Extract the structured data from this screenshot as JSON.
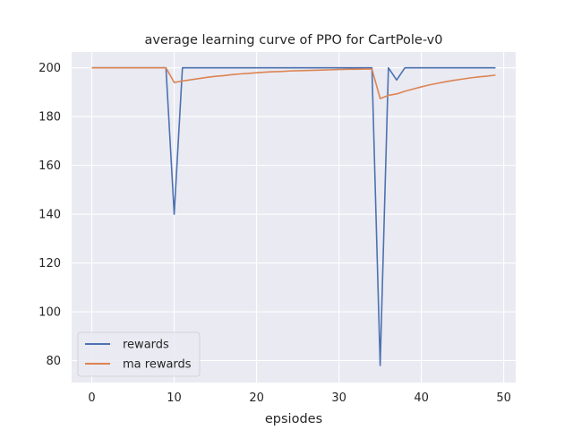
{
  "chart_data": {
    "type": "line",
    "title": "average learning curve of PPO for CartPole-v0",
    "xlabel": "epsiodes",
    "ylabel": "",
    "xlim": [
      -2.45,
      51.45
    ],
    "ylim": [
      71,
      206.5
    ],
    "xticks": [
      "0",
      "10",
      "20",
      "30",
      "40",
      "50"
    ],
    "yticks": [
      "80",
      "100",
      "120",
      "140",
      "160",
      "180",
      "200"
    ],
    "grid": true,
    "legend_position": "bottom-left",
    "background_color": "#eaeaf2",
    "grid_color": "#ffffff",
    "x": [
      0,
      1,
      2,
      3,
      4,
      5,
      6,
      7,
      8,
      9,
      10,
      11,
      12,
      13,
      14,
      15,
      16,
      17,
      18,
      19,
      20,
      21,
      22,
      23,
      24,
      25,
      26,
      27,
      28,
      29,
      30,
      31,
      32,
      33,
      34,
      35,
      36,
      37,
      38,
      39,
      40,
      41,
      42,
      43,
      44,
      45,
      46,
      47,
      48,
      49
    ],
    "series": [
      {
        "name": "rewards",
        "color": "#4c72b0",
        "values": [
          200,
          200,
          200,
          200,
          200,
          200,
          200,
          200,
          200,
          200,
          140,
          200,
          200,
          200,
          200,
          200,
          200,
          200,
          200,
          200,
          200,
          200,
          200,
          200,
          200,
          200,
          200,
          200,
          200,
          200,
          200,
          200,
          200,
          200,
          200,
          78,
          200,
          195,
          200,
          200,
          200,
          200,
          200,
          200,
          200,
          200,
          200,
          200,
          200,
          200
        ]
      },
      {
        "name": "ma rewards",
        "color": "#dd8452",
        "values": [
          200,
          200,
          200,
          200,
          200,
          200,
          200,
          200,
          200,
          200,
          194,
          194.6,
          195.1,
          195.6,
          196.1,
          196.5,
          196.8,
          197.2,
          197.5,
          197.7,
          198,
          198.2,
          198.4,
          198.5,
          198.7,
          198.8,
          198.9,
          199,
          199.1,
          199.2,
          199.3,
          199.4,
          199.4,
          199.5,
          199.5,
          187.4,
          188.7,
          189.3,
          190.4,
          191.3,
          192.2,
          193,
          193.7,
          194.3,
          194.9,
          195.4,
          195.9,
          196.3,
          196.6,
          197
        ]
      }
    ]
  }
}
